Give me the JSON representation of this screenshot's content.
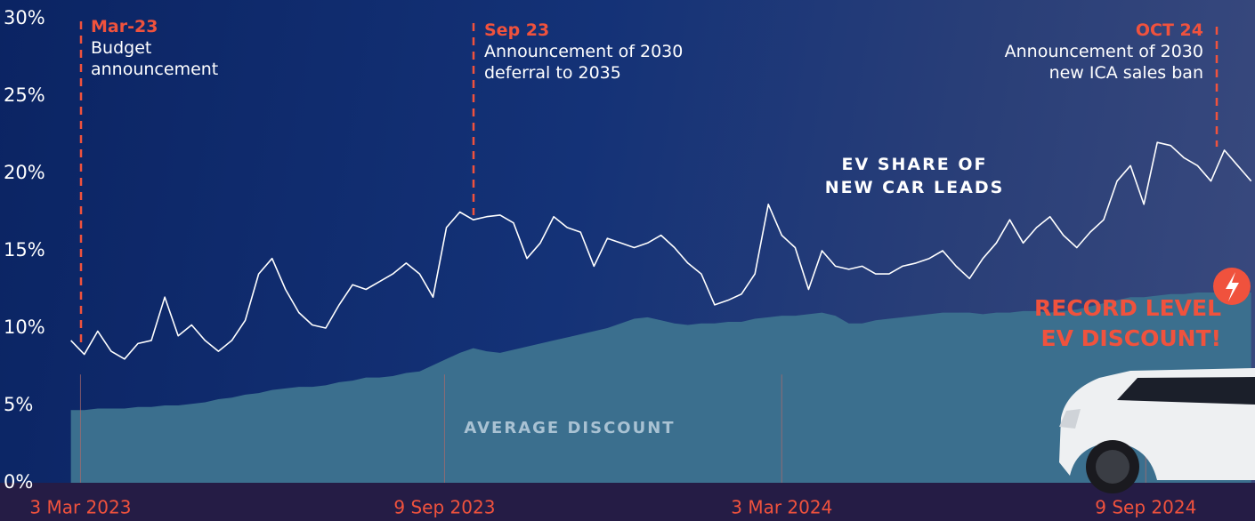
{
  "chart_data": {
    "type": "line-area",
    "x": [
      "2023-02-26",
      "2023-03-05",
      "2023-03-12",
      "2023-03-19",
      "2023-03-26",
      "2023-04-02",
      "2023-04-09",
      "2023-04-16",
      "2023-04-23",
      "2023-04-30",
      "2023-05-07",
      "2023-05-14",
      "2023-05-21",
      "2023-05-28",
      "2023-06-04",
      "2023-06-11",
      "2023-06-18",
      "2023-06-25",
      "2023-07-02",
      "2023-07-09",
      "2023-07-16",
      "2023-07-23",
      "2023-07-30",
      "2023-08-06",
      "2023-08-13",
      "2023-08-20",
      "2023-08-27",
      "2023-09-03",
      "2023-09-10",
      "2023-09-17",
      "2023-09-24",
      "2023-10-01",
      "2023-10-08",
      "2023-10-15",
      "2023-10-22",
      "2023-10-29",
      "2023-11-05",
      "2023-11-12",
      "2023-11-19",
      "2023-11-26",
      "2023-12-03",
      "2023-12-10",
      "2023-12-17",
      "2023-12-24",
      "2023-12-31",
      "2024-01-07",
      "2024-01-14",
      "2024-01-21",
      "2024-01-28",
      "2024-02-04",
      "2024-02-11",
      "2024-02-18",
      "2024-02-25",
      "2024-03-03",
      "2024-03-10",
      "2024-03-17",
      "2024-03-24",
      "2024-03-31",
      "2024-04-07",
      "2024-04-14",
      "2024-04-21",
      "2024-04-28",
      "2024-05-05",
      "2024-05-12",
      "2024-05-19",
      "2024-05-26",
      "2024-06-02",
      "2024-06-09",
      "2024-06-16",
      "2024-06-23",
      "2024-06-30",
      "2024-07-07",
      "2024-07-14",
      "2024-07-21",
      "2024-07-28",
      "2024-08-04",
      "2024-08-11",
      "2024-08-18",
      "2024-08-25",
      "2024-09-01",
      "2024-09-08",
      "2024-09-15",
      "2024-09-22",
      "2024-09-29",
      "2024-10-06",
      "2024-10-13",
      "2024-10-20",
      "2024-10-27",
      "2024-11-03"
    ],
    "series": [
      {
        "name": "EV SHARE OF NEW CAR LEADS",
        "color": "#ffffff",
        "values": [
          9.2,
          8.3,
          9.8,
          8.5,
          8.0,
          9.0,
          9.2,
          12.0,
          9.5,
          10.2,
          9.2,
          8.5,
          9.2,
          10.5,
          13.5,
          14.5,
          12.5,
          11.0,
          10.2,
          10.0,
          11.5,
          12.8,
          12.5,
          13.0,
          13.5,
          14.2,
          13.5,
          12.0,
          16.5,
          17.5,
          17.0,
          17.2,
          17.3,
          16.8,
          14.5,
          15.5,
          17.2,
          16.5,
          16.2,
          14.0,
          15.8,
          15.5,
          15.2,
          15.5,
          16.0,
          15.2,
          14.2,
          13.5,
          11.5,
          11.8,
          12.2,
          13.5,
          18.0,
          16.0,
          15.2,
          12.5,
          15.0,
          14.0,
          13.8,
          14.0,
          13.5,
          13.5,
          14.0,
          14.2,
          14.5,
          15.0,
          14.0,
          13.2,
          14.5,
          15.5,
          17.0,
          15.5,
          16.5,
          17.2,
          16.0,
          15.2,
          16.2,
          17.0,
          19.5,
          20.5,
          18.0,
          22.0,
          21.8,
          21.0,
          20.5,
          19.5,
          21.5,
          20.5,
          19.5
        ]
      },
      {
        "name": "AVERAGE DISCOUNT",
        "color": "#3b6f8e",
        "values": [
          4.7,
          4.7,
          4.8,
          4.8,
          4.8,
          4.9,
          4.9,
          5.0,
          5.0,
          5.1,
          5.2,
          5.4,
          5.5,
          5.7,
          5.8,
          6.0,
          6.1,
          6.2,
          6.2,
          6.3,
          6.5,
          6.6,
          6.8,
          6.8,
          6.9,
          7.1,
          7.2,
          7.6,
          8.0,
          8.4,
          8.7,
          8.5,
          8.4,
          8.6,
          8.8,
          9.0,
          9.2,
          9.4,
          9.6,
          9.8,
          10.0,
          10.3,
          10.6,
          10.7,
          10.5,
          10.3,
          10.2,
          10.3,
          10.3,
          10.4,
          10.4,
          10.6,
          10.7,
          10.8,
          10.8,
          10.9,
          11.0,
          10.8,
          10.3,
          10.3,
          10.5,
          10.6,
          10.7,
          10.8,
          10.9,
          11.0,
          11.0,
          11.0,
          10.9,
          11.0,
          11.0,
          11.1,
          11.1,
          11.0,
          11.1,
          11.2,
          11.4,
          11.6,
          11.8,
          12.0,
          12.0,
          12.1,
          12.2,
          12.2,
          12.3,
          12.3,
          12.3,
          12.3,
          12.3
        ]
      }
    ],
    "xlim": [
      "2023-01-20",
      "2024-11-05"
    ],
    "xticks": [
      {
        "value": "2023-03-03",
        "label": "3 Mar 2023"
      },
      {
        "value": "2023-09-09",
        "label": "9 Sep 2023"
      },
      {
        "value": "2024-03-03",
        "label": "3 Mar 2024"
      },
      {
        "value": "2024-09-09",
        "label": "9 Sep 2024"
      }
    ],
    "ylim": [
      0,
      30
    ],
    "yticks": [
      {
        "value": 0,
        "label": "0%"
      },
      {
        "value": 5,
        "label": "5%"
      },
      {
        "value": 10,
        "label": "10%"
      },
      {
        "value": 15,
        "label": "15%"
      },
      {
        "value": 20,
        "label": "20%"
      },
      {
        "value": 25,
        "label": "25%"
      },
      {
        "value": 30,
        "label": "30%"
      }
    ],
    "grid": false,
    "annotations": [
      {
        "date": "Mar-23",
        "text": "Budget announcement"
      },
      {
        "date": "Sep 23",
        "text": "Announcement of 2030 deferral to 2035"
      },
      {
        "date": "OCT 24",
        "text": "Announcement of 2030 new ICA sales ban"
      }
    ],
    "callout": "RECORD LEVEL EV DISCOUNT!"
  }
}
